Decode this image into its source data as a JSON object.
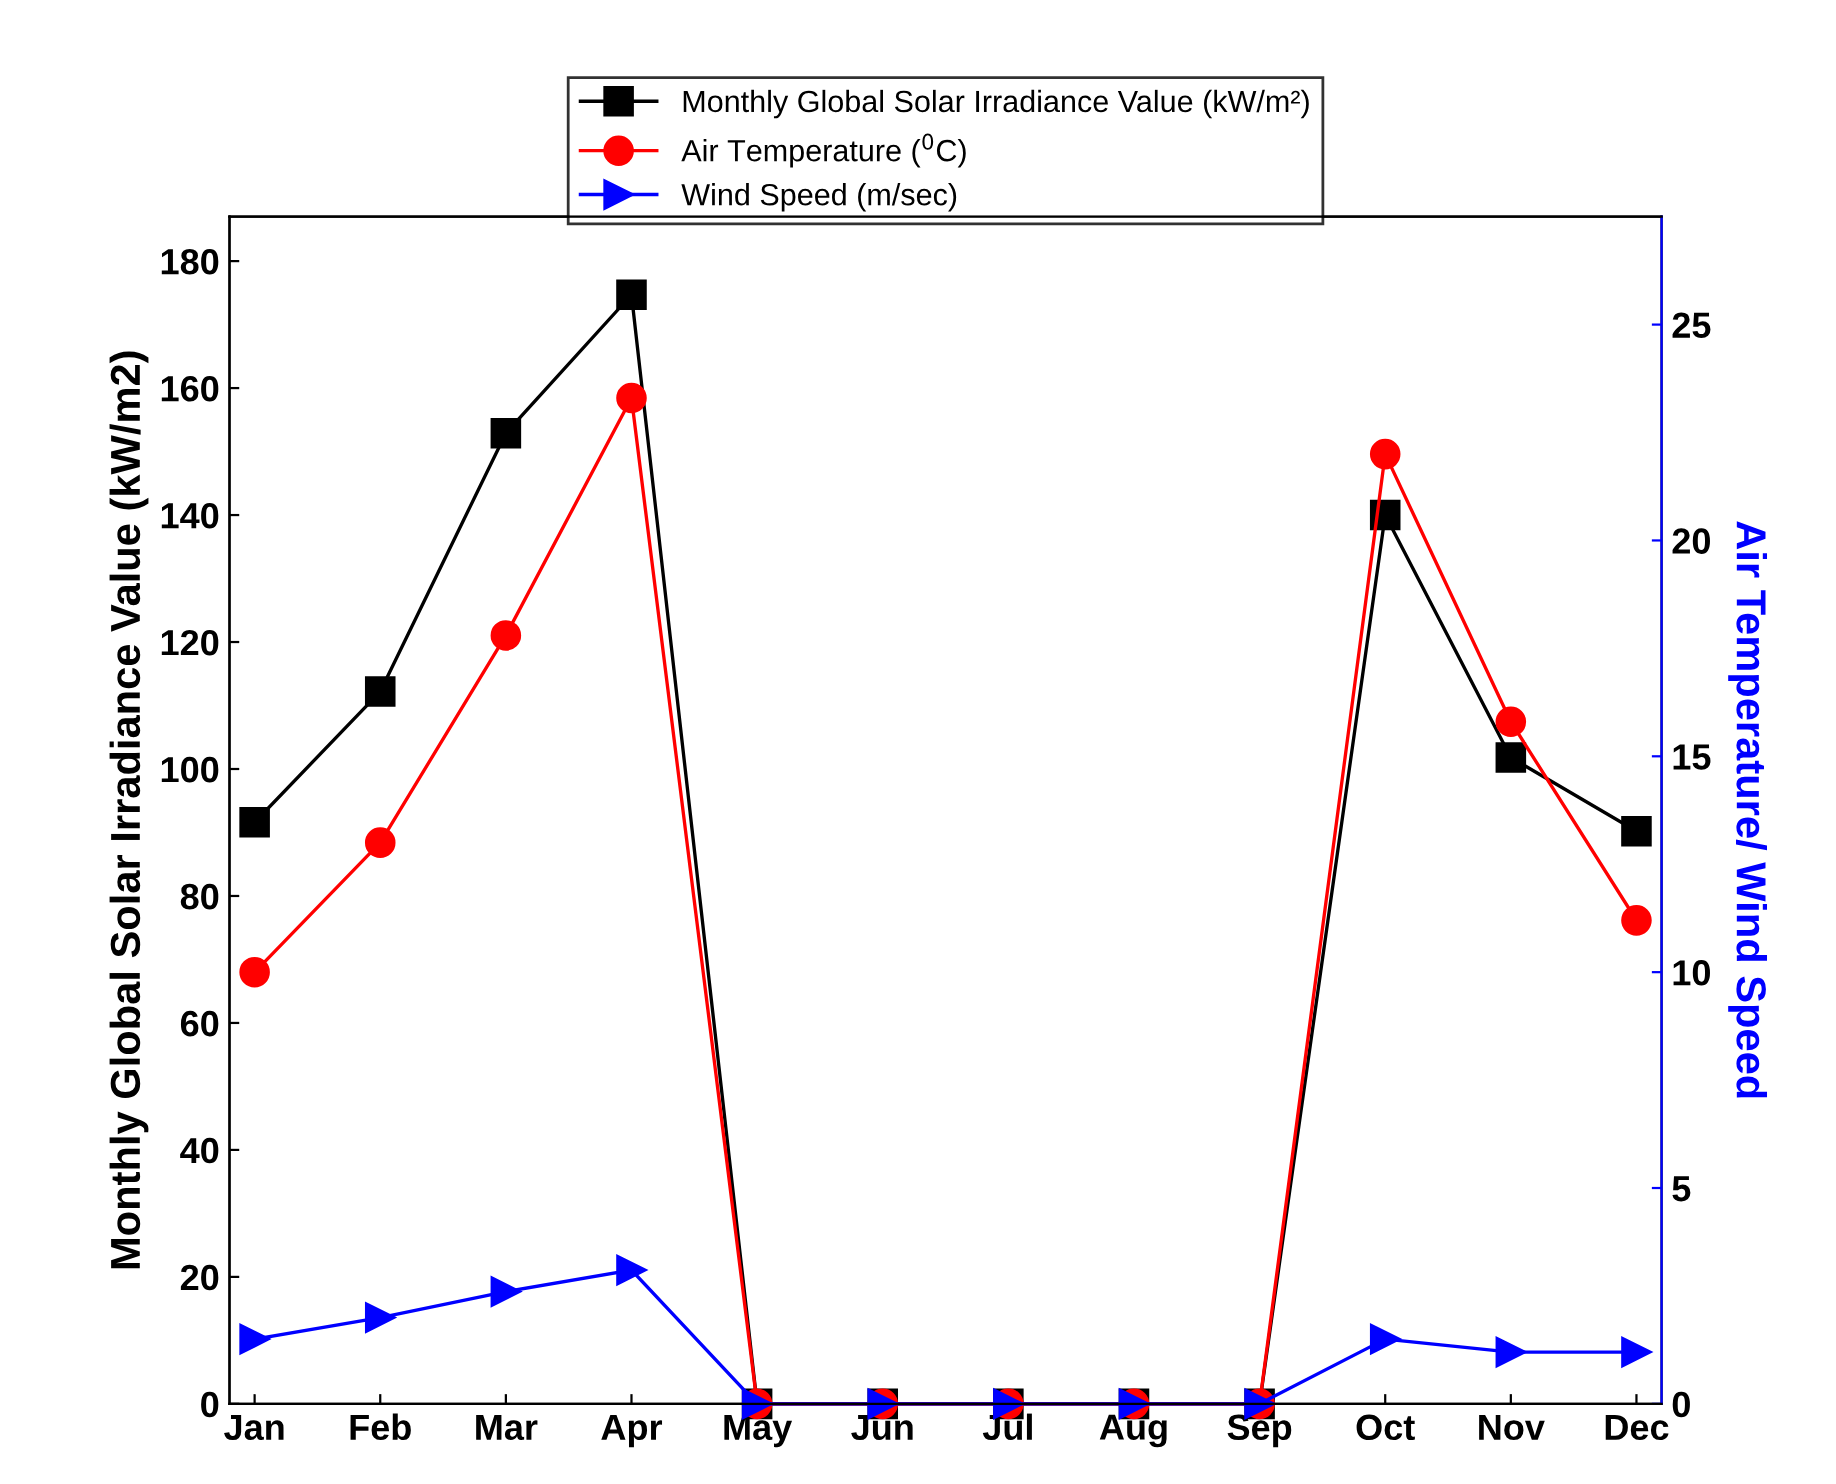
{
  "chart_data": {
    "type": "line",
    "ylabel": "Monthly Global Solar Irradiance Value (kW/m2)",
    "y2label": "Air Temperature/ Wind Speed",
    "categories": [
      "Jan",
      "Feb",
      "Mar",
      "Apr",
      "May",
      "Jun",
      "Jul",
      "Aug",
      "Sep",
      "Oct",
      "Nov",
      "Dec"
    ],
    "series": [
      {
        "name": "Monthly Global Solar Irradiance Value (kW/m²)",
        "color": "#000000",
        "marker": "square",
        "values": [
          91.6,
          112.2,
          152.9,
          174.7,
          0,
          0,
          0,
          0,
          0,
          140,
          101.8,
          90.2
        ]
      },
      {
        "name": "Air Temperature ($^{0}$C)",
        "color": "#ff0000",
        "marker": "circle",
        "axis": "y2",
        "values": [
          10.0,
          13.0,
          17.8,
          23.3,
          0,
          0,
          0,
          0,
          0,
          22.0,
          15.8,
          11.2
        ]
      },
      {
        "name": "Wind Speed (m/sec)",
        "color": "#0000ff",
        "marker": "triangle",
        "axis": "y2",
        "values": [
          1.5,
          2.0,
          2.6,
          3.1,
          0,
          0,
          0,
          0,
          0,
          1.5,
          1.2,
          1.2
        ]
      }
    ],
    "ylim": [
      0,
      187
    ],
    "yticks": [
      0,
      20,
      40,
      60,
      80,
      100,
      120,
      140,
      160,
      180
    ],
    "y2lim": [
      0,
      27.5
    ],
    "y2ticks": [
      0,
      5,
      10,
      15,
      20,
      25
    ],
    "legend": "top",
    "grid": false,
    "line_style": "solid"
  }
}
